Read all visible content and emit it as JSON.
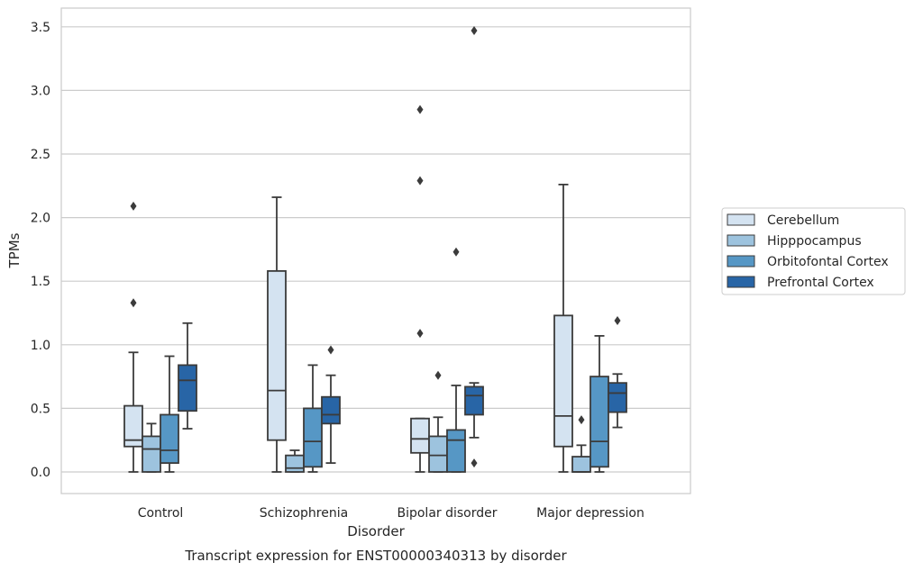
{
  "chart_data": {
    "type": "boxplot",
    "title": "",
    "caption": "Transcript expression for ENST00000340313 by disorder",
    "xlabel": "Disorder",
    "ylabel": "TPMs",
    "ylim": [
      -0.17,
      3.65
    ],
    "yticks": [
      "0.0",
      "0.5",
      "1.0",
      "1.5",
      "2.0",
      "2.5",
      "3.0",
      "3.5"
    ],
    "ytick_values": [
      0,
      0.5,
      1.0,
      1.5,
      2.0,
      2.5,
      3.0,
      3.5
    ],
    "grid": true,
    "legend_position": "right",
    "categories": [
      "Control",
      "Schizophrenia",
      "Bipolar disorder",
      "Major depression"
    ],
    "series": [
      {
        "name": "Cerebellum",
        "color": "#d4e3f1",
        "boxes": [
          {
            "whisker_low": 0.0,
            "q1": 0.2,
            "median": 0.25,
            "q3": 0.52,
            "whisker_high": 0.94,
            "outliers": [
              1.33,
              2.09
            ]
          },
          {
            "whisker_low": 0.0,
            "q1": 0.25,
            "median": 0.64,
            "q3": 1.58,
            "whisker_high": 2.16,
            "outliers": []
          },
          {
            "whisker_low": 0.0,
            "q1": 0.15,
            "median": 0.26,
            "q3": 0.42,
            "whisker_high": 0.42,
            "outliers": [
              1.09,
              2.29,
              2.85
            ]
          },
          {
            "whisker_low": 0.0,
            "q1": 0.2,
            "median": 0.44,
            "q3": 1.23,
            "whisker_high": 2.26,
            "outliers": []
          }
        ]
      },
      {
        "name": "Hipppocampus",
        "color": "#9dc3de",
        "boxes": [
          {
            "whisker_low": 0.0,
            "q1": 0.0,
            "median": 0.18,
            "q3": 0.28,
            "whisker_high": 0.38,
            "outliers": []
          },
          {
            "whisker_low": 0.0,
            "q1": 0.0,
            "median": 0.03,
            "q3": 0.13,
            "whisker_high": 0.17,
            "outliers": []
          },
          {
            "whisker_low": 0.0,
            "q1": 0.0,
            "median": 0.13,
            "q3": 0.28,
            "whisker_high": 0.43,
            "outliers": [
              0.76
            ]
          },
          {
            "whisker_low": 0.0,
            "q1": 0.0,
            "median": 0.0,
            "q3": 0.12,
            "whisker_high": 0.21,
            "outliers": [
              0.41
            ]
          }
        ]
      },
      {
        "name": "Orbitofontal Cortex",
        "color": "#5697c5",
        "boxes": [
          {
            "whisker_low": 0.0,
            "q1": 0.07,
            "median": 0.17,
            "q3": 0.45,
            "whisker_high": 0.91,
            "outliers": []
          },
          {
            "whisker_low": 0.0,
            "q1": 0.04,
            "median": 0.24,
            "q3": 0.5,
            "whisker_high": 0.84,
            "outliers": []
          },
          {
            "whisker_low": 0.0,
            "q1": 0.0,
            "median": 0.25,
            "q3": 0.33,
            "whisker_high": 0.68,
            "outliers": [
              1.73
            ]
          },
          {
            "whisker_low": 0.0,
            "q1": 0.04,
            "median": 0.24,
            "q3": 0.75,
            "whisker_high": 1.07,
            "outliers": []
          }
        ]
      },
      {
        "name": "Prefrontal Cortex",
        "color": "#2865a6",
        "boxes": [
          {
            "whisker_low": 0.34,
            "q1": 0.48,
            "median": 0.72,
            "q3": 0.84,
            "whisker_high": 1.17,
            "outliers": []
          },
          {
            "whisker_low": 0.07,
            "q1": 0.38,
            "median": 0.45,
            "q3": 0.59,
            "whisker_high": 0.76,
            "outliers": [
              0.96
            ]
          },
          {
            "whisker_low": 0.27,
            "q1": 0.45,
            "median": 0.6,
            "q3": 0.67,
            "whisker_high": 0.7,
            "outliers": [
              0.07,
              3.47
            ]
          },
          {
            "whisker_low": 0.35,
            "q1": 0.47,
            "median": 0.62,
            "q3": 0.7,
            "whisker_high": 0.77,
            "outliers": [
              1.19
            ]
          }
        ]
      }
    ]
  }
}
